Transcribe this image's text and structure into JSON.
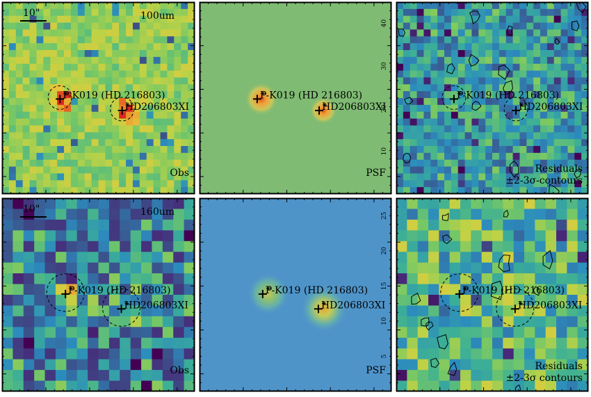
{
  "figure": {
    "panels": [
      {
        "id": "100-obs",
        "kind": "obs",
        "band_label": "100um",
        "corner_label": "Obs",
        "scalebar_label": "10\"",
        "style": "obs100",
        "source_circles": true
      },
      {
        "id": "100-psf",
        "kind": "psf",
        "corner_label": "PSF",
        "style": "psf100",
        "y_ticks": [
          "10",
          "20",
          "30",
          "40"
        ]
      },
      {
        "id": "100-res",
        "kind": "residual",
        "corner_label": "Residuals",
        "corner_label2": "±2-3σ-contours",
        "style": "res100",
        "source_circles": true
      },
      {
        "id": "160-obs",
        "kind": "obs",
        "band_label": "160um",
        "corner_label": "Obs",
        "scalebar_label": "10\"",
        "style": "obs160",
        "source_circles": true
      },
      {
        "id": "160-psf",
        "kind": "psf",
        "corner_label": "PSF",
        "style": "psf160",
        "y_ticks": [
          "5",
          "10",
          "15",
          "20",
          "25"
        ]
      },
      {
        "id": "160-res",
        "kind": "residual",
        "corner_label": "Residuals",
        "corner_label2": "±2-3σ contours",
        "style": "res160",
        "source_circles": true
      }
    ],
    "sources": [
      {
        "name": "P-K019 (HD 216803)"
      },
      {
        "name": "HD206803XI"
      }
    ],
    "colors": {
      "frame": "#000000",
      "psf100_bg": "#7fbb73",
      "psf160_bg": "#4f94c9",
      "peak": "#e8742a"
    }
  }
}
